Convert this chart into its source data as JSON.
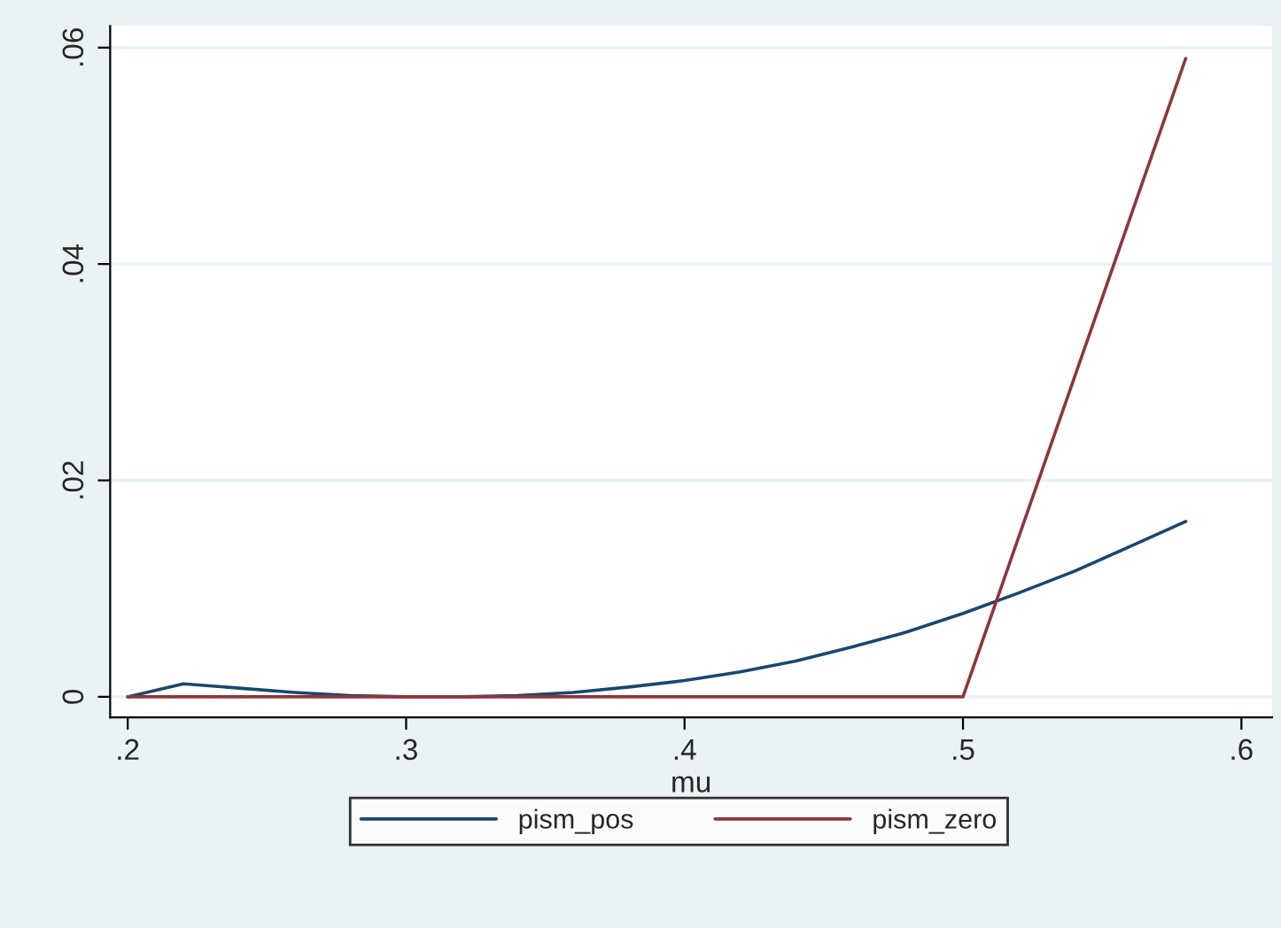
{
  "chart_data": {
    "type": "line",
    "xlabel": "mu",
    "xlim": [
      0.1937,
      0.611
    ],
    "ylim": [
      -0.0019,
      0.062
    ],
    "xticks": [
      {
        "value": 0.2,
        "label": ".2"
      },
      {
        "value": 0.3,
        "label": ".3"
      },
      {
        "value": 0.4,
        "label": ".4"
      },
      {
        "value": 0.5,
        "label": ".5"
      },
      {
        "value": 0.6,
        "label": ".6"
      }
    ],
    "yticks": [
      0,
      {
        "value": 0.02,
        "label": ".02"
      },
      {
        "value": 0.04,
        "label": ".04"
      },
      {
        "value": 0.06,
        "label": ".06"
      }
    ],
    "grid": "y",
    "legend": "bottom",
    "marker": "none",
    "line_style": "solid",
    "series": [
      {
        "name": "pism_pos",
        "color": "#1a476f",
        "x": [
          0.2,
          0.22,
          0.24,
          0.26,
          0.28,
          0.3,
          0.32,
          0.34,
          0.36,
          0.38,
          0.4,
          0.42,
          0.44,
          0.46,
          0.48,
          0.5,
          0.52,
          0.54,
          0.56,
          0.58
        ],
        "values": [
          0,
          0.0012,
          0.0008,
          0.0004,
          0.0001,
          0,
          0,
          0.0001,
          0.0004,
          0.0009,
          0.0015,
          0.0023,
          0.0033,
          0.0046,
          0.006,
          0.0077,
          0.0096,
          0.0116,
          0.0139,
          0.0162
        ]
      },
      {
        "name": "pism_zero",
        "color": "#90353b",
        "x": [
          0.2,
          0.5,
          0.58
        ],
        "values": [
          0,
          0,
          0.059
        ]
      }
    ]
  }
}
